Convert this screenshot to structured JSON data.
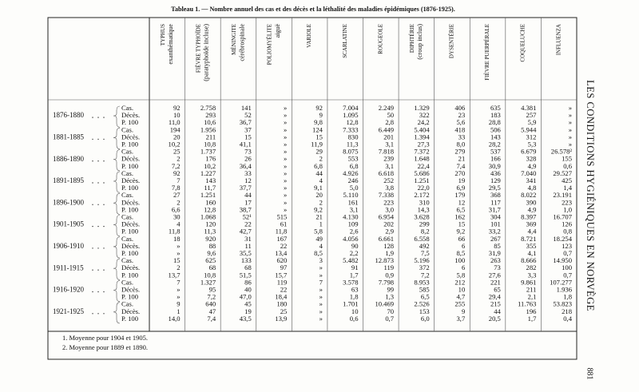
{
  "title": "Tableau 1. — Nombre annuel des cas et des décès et la léthalité des maladies épidémiques (1876-1925).",
  "running_head": "LES CONDITIONS HYGIÉNIQUES EN NORVÈGE",
  "page_number": "881",
  "columns": [
    {
      "lines": [
        "TYPHUS",
        "exanthématique"
      ]
    },
    {
      "lines": [
        "FIÈVRE TYPHOÏDE",
        "(paratyphoïde incluse)"
      ]
    },
    {
      "lines": [
        "MÉNINGITE",
        "cérébrospinale"
      ]
    },
    {
      "lines": [
        "POLIOMYÉLITE",
        "aiguë"
      ]
    },
    {
      "lines": [
        "VARIOLE"
      ]
    },
    {
      "lines": [
        "SCARLATINE"
      ]
    },
    {
      "lines": [
        "ROUGEOLE"
      ]
    },
    {
      "lines": [
        "DIPHTÉRIE",
        "(croup inclus)"
      ]
    },
    {
      "lines": [
        "DYSENTÉRIE"
      ]
    },
    {
      "lines": [
        "FIÈVRE PUERPÉRALE"
      ]
    },
    {
      "lines": [
        "COQUELUCHE"
      ]
    },
    {
      "lines": [
        "INFLUENZA"
      ]
    }
  ],
  "periods": [
    {
      "period": "1876-1880",
      "rows": [
        {
          "label": "Cas.",
          "cells": [
            "92",
            "2.758",
            "141",
            "»",
            "92",
            "7.004",
            "2.249",
            "1.329",
            "406",
            "635",
            "4.381",
            "»"
          ]
        },
        {
          "label": "Décès.",
          "cells": [
            "10",
            "293",
            "52",
            "»",
            "9",
            "1.095",
            "50",
            "322",
            "23",
            "183",
            "257",
            "»"
          ]
        },
        {
          "label": "P. 100",
          "cells": [
            "11,0",
            "10,6",
            "36,7",
            "»",
            "9,8",
            "12,8",
            "2,8",
            "24,2",
            "5,6",
            "28,8",
            "5,9",
            "»"
          ]
        }
      ]
    },
    {
      "period": "1881-1885",
      "rows": [
        {
          "label": "Cas.",
          "cells": [
            "194",
            "1.956",
            "37",
            "»",
            "124",
            "7.333",
            "6.449",
            "5.404",
            "418",
            "506",
            "5.944",
            "»"
          ]
        },
        {
          "label": "Décès.",
          "cells": [
            "20",
            "211",
            "15",
            "»",
            "15",
            "830",
            "201",
            "1.394",
            "33",
            "143",
            "312",
            "»"
          ]
        },
        {
          "label": "P. 100",
          "cells": [
            "10,2",
            "10,8",
            "41,1",
            "»",
            "11,9",
            "11,3",
            "3,1",
            "27,3",
            "8,0",
            "28,2",
            "5,3",
            "»"
          ]
        }
      ]
    },
    {
      "period": "1886-1890",
      "rows": [
        {
          "label": "Cas.",
          "cells": [
            "25",
            "1.737",
            "73",
            "»",
            "29",
            "8.075",
            "7.818",
            "7.372",
            "279",
            "537",
            "6.679",
            "26.578²"
          ]
        },
        {
          "label": "Décès.",
          "cells": [
            "2",
            "176",
            "26",
            "»",
            "2",
            "553",
            "239",
            "1.648",
            "21",
            "166",
            "328",
            "155"
          ]
        },
        {
          "label": "P. 100",
          "cells": [
            "7,2",
            "10,2",
            "36,4",
            "»",
            "6,8",
            "6,8",
            "3,1",
            "22,4",
            "7,4",
            "30,9",
            "4,9",
            "0,6"
          ]
        }
      ]
    },
    {
      "period": "1891-1895",
      "rows": [
        {
          "label": "Cas.",
          "cells": [
            "92",
            "1.227",
            "33",
            "»",
            "44",
            "4.926",
            "6.618",
            "5.686",
            "270",
            "436",
            "7.040",
            "29.527"
          ]
        },
        {
          "label": "Décès.",
          "cells": [
            "7",
            "143",
            "12",
            "»",
            "4",
            "246",
            "252",
            "1.251",
            "19",
            "129",
            "341",
            "425"
          ]
        },
        {
          "label": "P. 100",
          "cells": [
            "7,8",
            "11,7",
            "37,7",
            "»",
            "9,1",
            "5,0",
            "3,8",
            "22,0",
            "6,9",
            "29,5",
            "4,8",
            "1,4"
          ]
        }
      ]
    },
    {
      "period": "1896-1900",
      "rows": [
        {
          "label": "Cas.",
          "cells": [
            "27",
            "1.251",
            "44",
            "»",
            "20",
            "5.110",
            "7.338",
            "2.172",
            "179",
            "368",
            "8.022",
            "23.191"
          ]
        },
        {
          "label": "Décès.",
          "cells": [
            "2",
            "160",
            "17",
            "»",
            "2",
            "161",
            "223",
            "310",
            "12",
            "117",
            "390",
            "223"
          ]
        },
        {
          "label": "P. 100",
          "cells": [
            "6,6",
            "12,8",
            "38,7",
            "»",
            "9,2",
            "3,1",
            "3,0",
            "14,3",
            "6,5",
            "31,7",
            "4,9",
            "1,0"
          ]
        }
      ]
    },
    {
      "period": "1901-1905",
      "rows": [
        {
          "label": "Cas.",
          "cells": [
            "30",
            "1.068",
            "52¹",
            "515",
            "21",
            "4.130",
            "6.954",
            "3.628",
            "162",
            "304",
            "8.397",
            "16.707"
          ]
        },
        {
          "label": "Décès.",
          "cells": [
            "4",
            "120",
            "22",
            "61",
            "1",
            "109",
            "202",
            "299",
            "15",
            "101",
            "369",
            "126"
          ]
        },
        {
          "label": "P. 100",
          "cells": [
            "11,8",
            "11,3",
            "42,7",
            "11,8",
            "5,8",
            "2,6",
            "2,9",
            "8,2",
            "9,2",
            "33,2",
            "4,4",
            "0,8"
          ]
        }
      ]
    },
    {
      "period": "1906-1910",
      "rows": [
        {
          "label": "Cas.",
          "cells": [
            "18",
            "920",
            "31",
            "167",
            "49",
            "4.056",
            "6.661",
            "6.558",
            "66",
            "267",
            "8.721",
            "18.254"
          ]
        },
        {
          "label": "Décès.",
          "cells": [
            "»",
            "88",
            "11",
            "22",
            "4",
            "90",
            "128",
            "492",
            "6",
            "85",
            "355",
            "123"
          ]
        },
        {
          "label": "P. 100",
          "cells": [
            "»",
            "9,6",
            "35,5",
            "13,4",
            "8,5",
            "2,2",
            "1,9",
            "7,5",
            "8,5",
            "31,9",
            "4,1",
            "0,7"
          ]
        }
      ]
    },
    {
      "period": "1911-1915",
      "rows": [
        {
          "label": "Cas.",
          "cells": [
            "15",
            "625",
            "133",
            "620",
            "3",
            "5.482",
            "12.873",
            "5.196",
            "100",
            "263",
            "8.666",
            "14.950"
          ]
        },
        {
          "label": "Décès.",
          "cells": [
            "2",
            "68",
            "68",
            "97",
            "»",
            "91",
            "119",
            "372",
            "6",
            "73",
            "282",
            "100"
          ]
        },
        {
          "label": "P. 100",
          "cells": [
            "13,7",
            "10,8",
            "51,5",
            "15,7",
            "»",
            "1,7",
            "0,9",
            "7,2",
            "5,8",
            "27,6",
            "3,3",
            "0,7"
          ]
        }
      ]
    },
    {
      "period": "1916-1920",
      "rows": [
        {
          "label": "Cas.",
          "cells": [
            "7",
            "1.327",
            "86",
            "119",
            "7",
            "3.578",
            "7.798",
            "8.953",
            "212",
            "221",
            "9.861",
            "107.277"
          ]
        },
        {
          "label": "Décès.",
          "cells": [
            "»",
            "95",
            "40",
            "22",
            "»",
            "63",
            "99",
            "585",
            "10",
            "65",
            "211",
            "1.936"
          ]
        },
        {
          "label": "P. 100",
          "cells": [
            "»",
            "7,2",
            "47,0",
            "18,4",
            "»",
            "1,8",
            "1,3",
            "6,5",
            "4,7",
            "29,4",
            "2,1",
            "1,8"
          ]
        }
      ]
    },
    {
      "period": "1921-1925",
      "rows": [
        {
          "label": "Cas.",
          "cells": [
            "9",
            "640",
            "45",
            "180",
            "»",
            "1.701",
            "10.469",
            "2.526",
            "255",
            "215",
            "11.763",
            "53.823"
          ]
        },
        {
          "label": "Décès.",
          "cells": [
            "1",
            "47",
            "19",
            "25",
            "»",
            "10",
            "70",
            "153",
            "9",
            "44",
            "196",
            "218"
          ]
        },
        {
          "label": "P. 100",
          "cells": [
            "14,0",
            "7,4",
            "43,5",
            "13,9",
            "»",
            "0,6",
            "0,7",
            "6,0",
            "3,7",
            "20,5",
            "1,7",
            "0,4"
          ]
        }
      ]
    }
  ],
  "footnotes": [
    "1. Moyenne pour 1904 et 1905.",
    "2. Moyenne pour 1889 et 1890."
  ]
}
